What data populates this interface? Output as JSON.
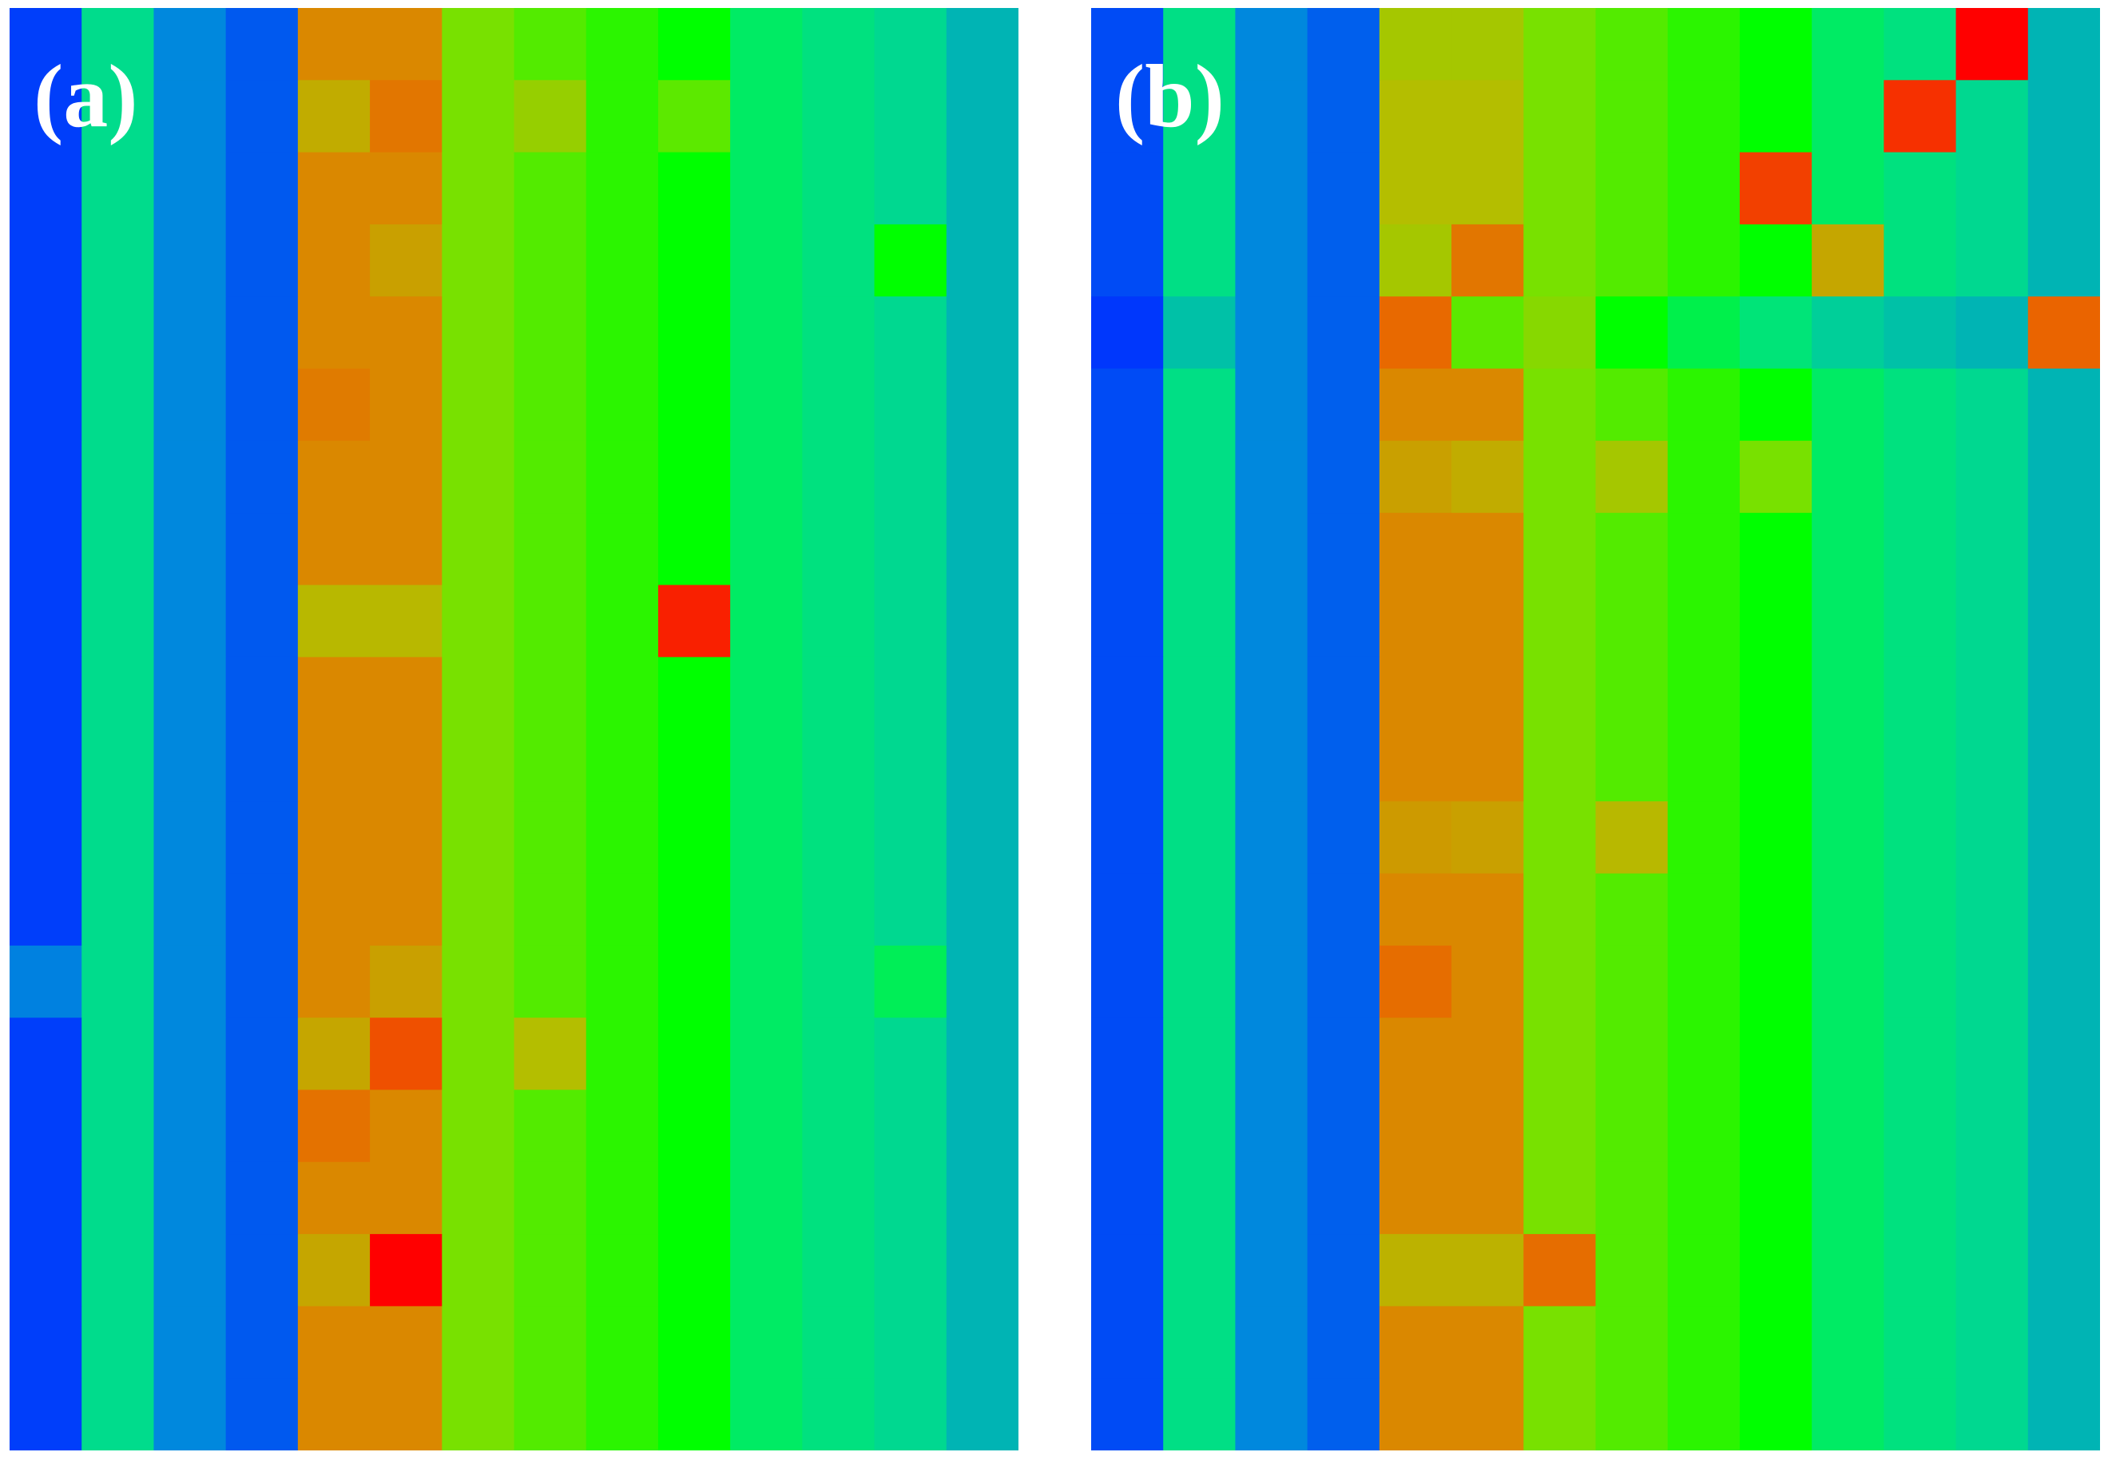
{
  "chart_data": [
    {
      "type": "heatmap",
      "title": "",
      "panel_label": "(a)",
      "xlabel": "",
      "ylabel": "",
      "grid": false,
      "legend": "none",
      "color_scale": "blue-green-orange-red",
      "value_range": [
        0,
        1
      ],
      "n_rows": 20,
      "n_cols": 14,
      "default_row": [
        0.02,
        0.36,
        0.13,
        0.06,
        0.79,
        0.79,
        0.62,
        0.58,
        0.54,
        0.5,
        0.42,
        0.38,
        0.35,
        0.27
      ],
      "cell_overrides": [
        {
          "row": 1,
          "col": 4,
          "value": 0.73
        },
        {
          "row": 1,
          "col": 5,
          "value": 0.83
        },
        {
          "row": 1,
          "col": 7,
          "value": 0.66
        },
        {
          "row": 1,
          "col": 9,
          "value": 0.59
        },
        {
          "row": 3,
          "col": 5,
          "value": 0.75
        },
        {
          "row": 3,
          "col": 12,
          "value": 0.5
        },
        {
          "row": 5,
          "col": 4,
          "value": 0.82
        },
        {
          "row": 8,
          "col": 4,
          "value": 0.71
        },
        {
          "row": 8,
          "col": 5,
          "value": 0.71
        },
        {
          "row": 8,
          "col": 9,
          "value": 0.96
        },
        {
          "row": 13,
          "col": 0,
          "value": 0.12
        },
        {
          "row": 13,
          "col": 5,
          "value": 0.75
        },
        {
          "row": 13,
          "col": 12,
          "value": 0.43
        },
        {
          "row": 14,
          "col": 4,
          "value": 0.74
        },
        {
          "row": 14,
          "col": 5,
          "value": 0.9
        },
        {
          "row": 14,
          "col": 7,
          "value": 0.7
        },
        {
          "row": 15,
          "col": 4,
          "value": 0.84
        },
        {
          "row": 17,
          "col": 4,
          "value": 0.74
        },
        {
          "row": 17,
          "col": 5,
          "value": 1.0
        }
      ]
    },
    {
      "type": "heatmap",
      "title": "",
      "panel_label": "(b)",
      "xlabel": "",
      "ylabel": "",
      "grid": false,
      "legend": "none",
      "color_scale": "blue-green-orange-red",
      "value_range": [
        0,
        1
      ],
      "n_rows": 20,
      "n_cols": 14,
      "default_row": [
        0.04,
        0.37,
        0.13,
        0.07,
        0.79,
        0.79,
        0.62,
        0.58,
        0.54,
        0.5,
        0.42,
        0.38,
        0.35,
        0.27
      ],
      "cell_overrides": [
        {
          "row": 0,
          "col": 4,
          "value": 0.68
        },
        {
          "row": 0,
          "col": 5,
          "value": 0.68
        },
        {
          "row": 0,
          "col": 12,
          "value": 1.0
        },
        {
          "row": 1,
          "col": 4,
          "value": 0.7
        },
        {
          "row": 1,
          "col": 5,
          "value": 0.7
        },
        {
          "row": 1,
          "col": 11,
          "value": 0.94
        },
        {
          "row": 2,
          "col": 4,
          "value": 0.7
        },
        {
          "row": 2,
          "col": 5,
          "value": 0.7
        },
        {
          "row": 2,
          "col": 9,
          "value": 0.92
        },
        {
          "row": 3,
          "col": 4,
          "value": 0.68
        },
        {
          "row": 3,
          "col": 5,
          "value": 0.83
        },
        {
          "row": 3,
          "col": 10,
          "value": 0.74
        },
        {
          "row": 4,
          "col": 0,
          "value": 0.01
        },
        {
          "row": 4,
          "col": 1,
          "value": 0.3
        },
        {
          "row": 4,
          "col": 4,
          "value": 0.86
        },
        {
          "row": 4,
          "col": 5,
          "value": 0.59
        },
        {
          "row": 4,
          "col": 6,
          "value": 0.64
        },
        {
          "row": 4,
          "col": 7,
          "value": 0.5
        },
        {
          "row": 4,
          "col": 8,
          "value": 0.44
        },
        {
          "row": 4,
          "col": 9,
          "value": 0.39
        },
        {
          "row": 4,
          "col": 10,
          "value": 0.33
        },
        {
          "row": 4,
          "col": 11,
          "value": 0.3
        },
        {
          "row": 4,
          "col": 12,
          "value": 0.27
        },
        {
          "row": 4,
          "col": 13,
          "value": 0.87
        },
        {
          "row": 6,
          "col": 4,
          "value": 0.75
        },
        {
          "row": 6,
          "col": 5,
          "value": 0.73
        },
        {
          "row": 6,
          "col": 7,
          "value": 0.68
        },
        {
          "row": 6,
          "col": 9,
          "value": 0.62
        },
        {
          "row": 11,
          "col": 4,
          "value": 0.76
        },
        {
          "row": 11,
          "col": 5,
          "value": 0.75
        },
        {
          "row": 11,
          "col": 7,
          "value": 0.71
        },
        {
          "row": 13,
          "col": 4,
          "value": 0.85
        },
        {
          "row": 17,
          "col": 4,
          "value": 0.72
        },
        {
          "row": 17,
          "col": 5,
          "value": 0.72
        },
        {
          "row": 17,
          "col": 6,
          "value": 0.85
        }
      ]
    }
  ]
}
